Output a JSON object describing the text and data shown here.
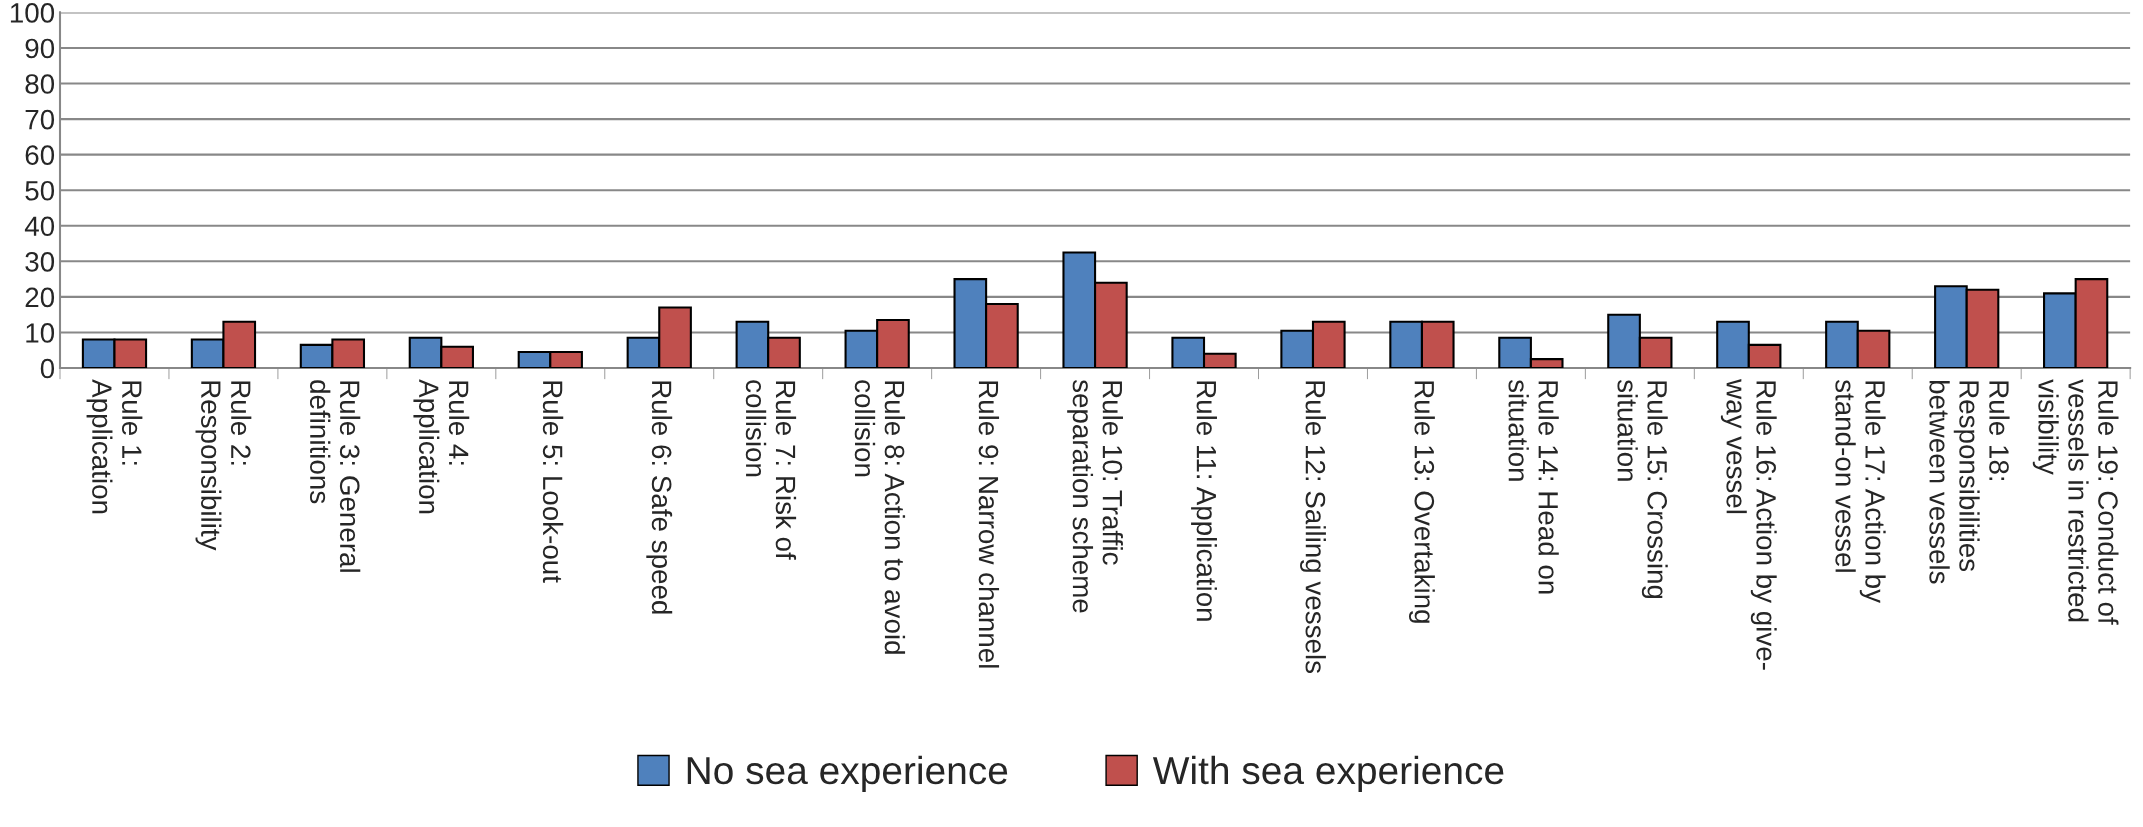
{
  "chart_data": {
    "type": "bar",
    "categories": [
      "Rule 1:\nApplication",
      "Rule 2:\nResponsibility",
      "Rule 3: General\ndefinitions",
      "Rule 4:\nApplication",
      "Rule 5: Look-out",
      "Rule 6: Safe speed",
      "Rule 7: Risk of\ncollision",
      "Rule 8: Action to avoid\ncollision",
      "Rule 9: Narrow channel",
      "Rule 10: Traffic\nseparation scheme",
      "Rule 11: Application",
      "Rule 12: Sailing vessels",
      "Rule 13: Overtaking",
      "Rule 14: Head on\nsituation",
      "Rule 15: Crossing\nsituation",
      "Rule 16: Action by give-\nway vessel",
      "Rule 17: Action by\nstand-on vessel",
      "Rule 18:\nResponsibilities\nbetween vessels",
      "Rule 19: Conduct of\nvessels in restricted\nvisibility"
    ],
    "series": [
      {
        "name": "No sea experience",
        "color": "#4f81bd",
        "values": [
          8,
          8,
          6.5,
          8.5,
          4.5,
          8.5,
          13,
          10.5,
          25,
          32.5,
          8.5,
          10.5,
          13,
          8.5,
          15,
          13,
          13,
          23,
          21
        ]
      },
      {
        "name": "With sea experience",
        "color": "#c0504d",
        "values": [
          8,
          13,
          8,
          6,
          4.5,
          17,
          8.5,
          13.5,
          18,
          24,
          4,
          13,
          13,
          2.5,
          8.5,
          6.5,
          10.5,
          22,
          25
        ]
      }
    ],
    "ylim": [
      0,
      100
    ],
    "yticks": [
      0,
      10,
      20,
      30,
      40,
      50,
      60,
      70,
      80,
      90,
      100
    ],
    "grid": "y",
    "legend": "bottom"
  }
}
